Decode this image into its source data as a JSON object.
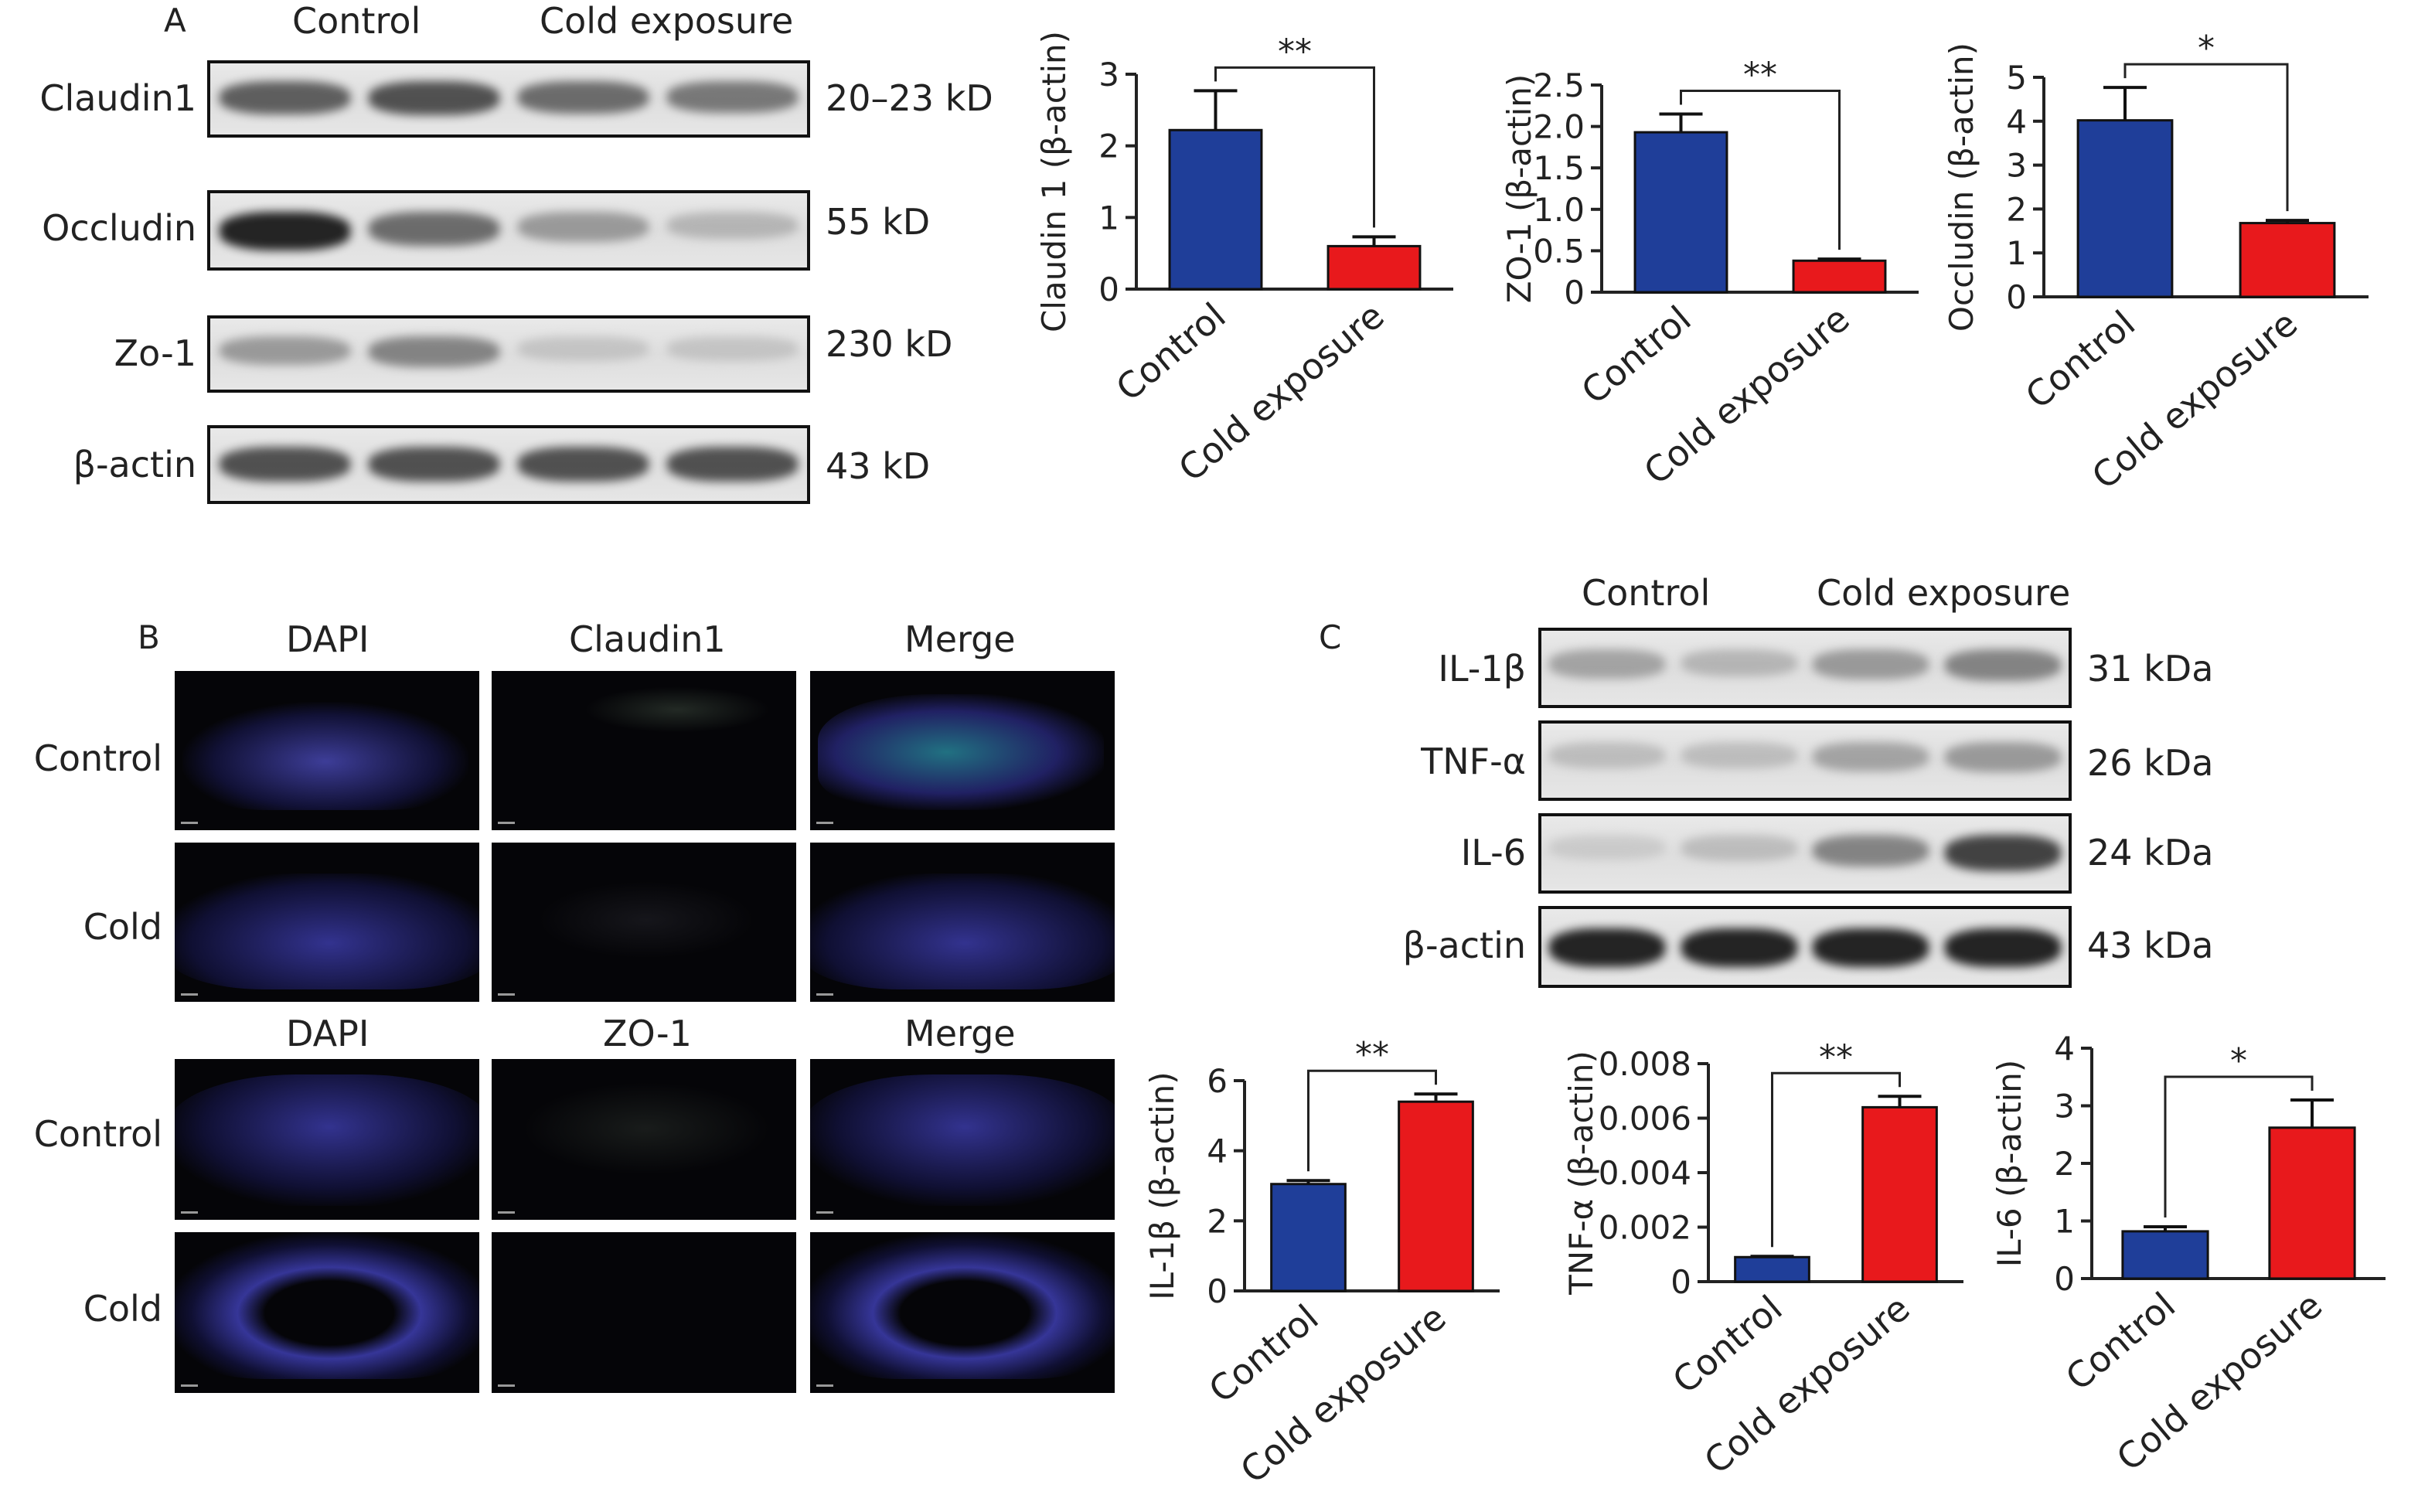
{
  "figure": {
    "panel_a": {
      "letter": "A",
      "groups": [
        "Control",
        "Cold exposure"
      ],
      "blots": [
        {
          "name": "Claudin1",
          "size": "20–23 kD",
          "intensities": [
            0.75,
            0.8,
            0.7,
            0.65
          ]
        },
        {
          "name": "Occludin",
          "size": "55 kD",
          "intensities": [
            0.95,
            0.7,
            0.5,
            0.35
          ]
        },
        {
          "name": "Zo-1",
          "size": "230 kD",
          "intensities": [
            0.5,
            0.6,
            0.25,
            0.25
          ]
        },
        {
          "name": "β-actin",
          "size": "43 kD",
          "intensities": [
            0.8,
            0.8,
            0.8,
            0.8
          ]
        }
      ]
    },
    "panel_b": {
      "letter": "B",
      "block1_columns": [
        "DAPI",
        "Claudin1",
        "Merge"
      ],
      "block2_columns": [
        "DAPI",
        "ZO-1",
        "Merge"
      ],
      "rows": [
        "Control",
        "Cold"
      ]
    },
    "panel_c": {
      "letter": "C",
      "groups": [
        "Control",
        "Cold exposure"
      ],
      "blots": [
        {
          "name": "IL-1β",
          "size": "31 kDa",
          "intensities": [
            0.45,
            0.35,
            0.5,
            0.6
          ]
        },
        {
          "name": "TNF-α",
          "size": "26 kDa",
          "intensities": [
            0.3,
            0.3,
            0.45,
            0.5
          ]
        },
        {
          "name": "IL-6",
          "size": "24 kDa",
          "intensities": [
            0.2,
            0.3,
            0.6,
            0.85
          ]
        },
        {
          "name": "β-actin",
          "size": "43 kDa",
          "intensities": [
            0.95,
            0.95,
            0.95,
            0.95
          ]
        }
      ]
    }
  },
  "colors": {
    "control": "#1f3e99",
    "cold": "#e8191c"
  },
  "chart_data": [
    {
      "id": "claudin1",
      "type": "bar",
      "categories": [
        "Control",
        "Cold exposure"
      ],
      "values": [
        2.22,
        0.6
      ],
      "errors": [
        0.55,
        0.13
      ],
      "ylabel": "Claudin 1 (β-actin)",
      "ylim": [
        0,
        3
      ],
      "yticks": [
        0,
        1,
        2,
        3
      ],
      "tick_labels": [
        "0",
        "1",
        "2",
        "3"
      ],
      "significance": "**"
    },
    {
      "id": "zo1",
      "type": "bar",
      "categories": [
        "Control",
        "Cold exposure"
      ],
      "values": [
        1.93,
        0.38
      ],
      "errors": [
        0.22,
        0.02
      ],
      "ylabel": "ZO-1 (β-actin)",
      "ylim": [
        0,
        2.5
      ],
      "yticks": [
        0,
        0.5,
        1,
        1.5,
        2,
        2.5
      ],
      "tick_labels": [
        "0",
        "0.5",
        "1.0",
        "1.5",
        "2.0",
        "2.5"
      ],
      "significance": "**"
    },
    {
      "id": "occludin",
      "type": "bar",
      "categories": [
        "Control",
        "Cold exposure"
      ],
      "values": [
        4.02,
        1.68
      ],
      "errors": [
        0.75,
        0.06
      ],
      "ylabel": "Occludin (β-actin)",
      "ylim": [
        0,
        5
      ],
      "yticks": [
        0,
        1,
        2,
        3,
        4,
        5
      ],
      "tick_labels": [
        "0",
        "1",
        "2",
        "3",
        "4",
        "5"
      ],
      "significance": "*"
    },
    {
      "id": "il1b",
      "type": "bar",
      "categories": [
        "Control",
        "Cold exposure"
      ],
      "values": [
        3.05,
        5.4
      ],
      "errors": [
        0.1,
        0.22
      ],
      "ylabel": "IL-1β (β-actin)",
      "ylim": [
        0,
        6
      ],
      "yticks": [
        0,
        2,
        4,
        6
      ],
      "tick_labels": [
        "0",
        "2",
        "4",
        "6"
      ],
      "significance": "**"
    },
    {
      "id": "tnfa",
      "type": "bar",
      "categories": [
        "Control",
        "Cold exposure"
      ],
      "values": [
        0.0009,
        0.0064
      ],
      "errors": [
        3e-05,
        0.0004
      ],
      "ylabel": "TNF-α (β-actin)",
      "ylim": [
        0,
        0.008
      ],
      "yticks": [
        0,
        0.002,
        0.004,
        0.006,
        0.008
      ],
      "tick_labels": [
        "0",
        "0.002",
        "0.004",
        "0.006",
        "0.008"
      ],
      "significance": "**"
    },
    {
      "id": "il6",
      "type": "bar",
      "categories": [
        "Control",
        "Cold exposure"
      ],
      "values": [
        0.82,
        2.62
      ],
      "errors": [
        0.08,
        0.48
      ],
      "ylabel": "IL-6 (β-actin)",
      "ylim": [
        0,
        4
      ],
      "yticks": [
        0,
        1,
        2,
        3,
        4
      ],
      "tick_labels": [
        "0",
        "1",
        "2",
        "3",
        "4"
      ],
      "significance": "*"
    }
  ]
}
